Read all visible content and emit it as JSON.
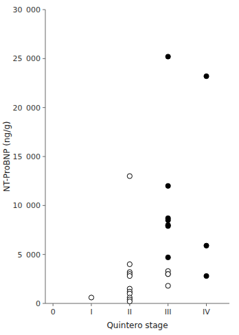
{
  "chart_data": {
    "type": "scatter",
    "title": "",
    "xlabel": "Quintero stage",
    "ylabel": "NT-ProBNP (ng/g)",
    "xlim": [
      -0.2,
      4.6
    ],
    "ylim": [
      0,
      30000
    ],
    "xticks": [
      0,
      {
        "value": 1,
        "label": "I"
      },
      {
        "value": 2,
        "label": "II"
      },
      {
        "value": 3,
        "label": "III"
      },
      {
        "value": 4,
        "label": "IV"
      }
    ],
    "yticks": [
      0,
      {
        "value": 5000,
        "label": "5 000"
      },
      {
        "value": 10000,
        "label": "10 000"
      },
      {
        "value": 15000,
        "label": "15 000"
      },
      {
        "value": 20000,
        "label": "20 000"
      },
      {
        "value": 25000,
        "label": "25 000"
      },
      {
        "value": 30000,
        "label": "30 000"
      }
    ],
    "grid": false,
    "series": [
      {
        "color": "white",
        "marker": "circle",
        "x": [
          1,
          2,
          2,
          2,
          2,
          2,
          2,
          2,
          2,
          2,
          2,
          2,
          3,
          3,
          3,
          3
        ],
        "values": [
          600,
          13000,
          4000,
          3200,
          3000,
          2800,
          1500,
          1200,
          1000,
          600,
          400,
          200,
          3300,
          3000,
          3000,
          1800
        ]
      },
      {
        "color": "black",
        "marker": "circle",
        "x": [
          3,
          3,
          3,
          3,
          3,
          3,
          3,
          4,
          4,
          4
        ],
        "values": [
          25200,
          12000,
          8700,
          8500,
          8000,
          7900,
          4700,
          23200,
          5900,
          2800
        ]
      }
    ]
  }
}
